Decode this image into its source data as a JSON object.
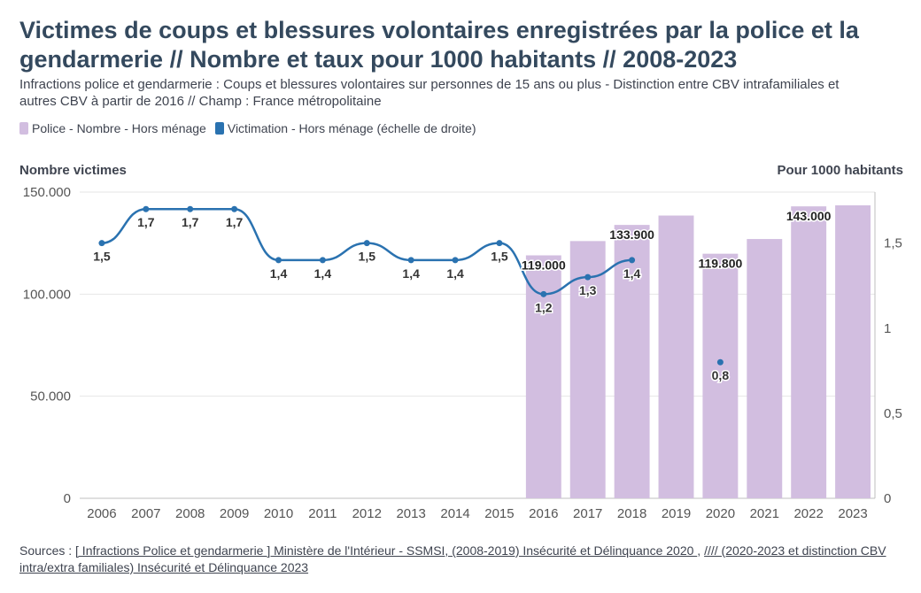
{
  "title": "Victimes de coups et blessures volontaires enregistrées par la police et la gendarmerie // Nombre et taux pour 1000 habitants // 2008-2023",
  "subtitle": "Infractions police et gendarmerie : Coups et blessures volontaires sur personnes de 15 ans ou plus - Distinction entre CBV intrafamiliales et autres CBV à partir de 2016 // Champ : France métropolitaine",
  "legend": {
    "bars_label": "Police - Nombre - Hors ménage",
    "line_label": "Victimation - Hors ménage (échelle de droite)"
  },
  "sources": {
    "prefix": "Sources : ",
    "link1": "[ Infractions Police et gendarmerie ] Ministère de l'Intérieur - SSMSI, (2008-2019) Insécurité et Délinquance 2020 ",
    "sep": ", ",
    "link2": "//// (2020-2023 et distinction CBV intra/extra familiales) Insécurité et Délinquance 2023"
  },
  "chart_data": {
    "type": "bar+line",
    "xlabel": "",
    "ylabel_left": "Nombre victimes",
    "ylabel_right": "Pour 1000 habitants",
    "categories": [
      "2006",
      "2007",
      "2008",
      "2009",
      "2010",
      "2011",
      "2012",
      "2013",
      "2014",
      "2015",
      "2016",
      "2017",
      "2018",
      "2019",
      "2020",
      "2021",
      "2022",
      "2023"
    ],
    "ylim_left": [
      0,
      150000
    ],
    "yticks_left": [
      0,
      50000,
      100000,
      150000
    ],
    "ytick_labels_left": [
      "0",
      "50.000",
      "100.000",
      "150.000"
    ],
    "ylim_right": [
      0,
      1.8
    ],
    "yticks_right": [
      0,
      0.5,
      1,
      1.5
    ],
    "ytick_labels_right": [
      "0",
      "0,5",
      "1",
      "1,5"
    ],
    "grid": true,
    "legend_position": "top-left",
    "series": [
      {
        "name": "Police - Nombre - Hors ménage",
        "type": "bar",
        "axis": "left",
        "color": "#d2bee0",
        "values": [
          null,
          null,
          null,
          null,
          null,
          null,
          null,
          null,
          null,
          null,
          119000,
          126000,
          133900,
          138500,
          119800,
          127000,
          143000,
          143500
        ],
        "data_labels": [
          "",
          "",
          "",
          "",
          "",
          "",
          "",
          "",
          "",
          "",
          "119.000",
          "",
          "133.900",
          "",
          "119.800",
          "",
          "143.000",
          ""
        ]
      },
      {
        "name": "Victimation - Hors ménage (échelle de droite)",
        "type": "line",
        "axis": "right",
        "color": "#2a72b0",
        "values": [
          1.5,
          1.7,
          1.7,
          1.7,
          1.4,
          1.4,
          1.5,
          1.4,
          1.4,
          1.5,
          1.2,
          1.3,
          1.4,
          null,
          0.8,
          null,
          null,
          null
        ],
        "data_labels": [
          "1,5",
          "1,7",
          "1,7",
          "1,7",
          "1,4",
          "1,4",
          "1,5",
          "1,4",
          "1,4",
          "1,5",
          "1,2",
          "1,3",
          "1,4",
          "",
          "0,8",
          "",
          "",
          ""
        ]
      }
    ]
  }
}
